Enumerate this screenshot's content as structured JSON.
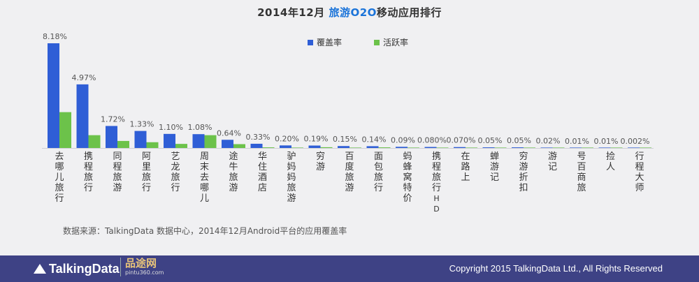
{
  "title": {
    "prefix": "2014年12月 ",
    "accent": "旅游O2O",
    "suffix": "移动应用排行"
  },
  "source_note": "数据来源：TalkingData 数据中心，2014年12月Android平台的应用覆盖率",
  "footer": {
    "logo": "TalkingData",
    "partner_name": "品途网",
    "partner_url": "pintu360.com",
    "copyright": "Copyright 2015 TalkingData Ltd., All Rights Reserved"
  },
  "colors": {
    "coverage": "#2f5ed6",
    "active": "#6cc24a",
    "footer": "#3e4285",
    "accent": "#1a73d9"
  },
  "chart_data": {
    "type": "bar",
    "categories": [
      "去哪儿旅行",
      "携程旅行",
      "同程旅游",
      "阿里旅行",
      "艺龙旅行",
      "周末去哪儿",
      "途牛旅游",
      "华住酒店",
      "驴妈妈旅游",
      "穷游",
      "百度旅游",
      "面包旅行",
      "蚂蜂窝特价",
      "携程旅行HD",
      "在路上",
      "蝉游记",
      "穷游折扣",
      "游记",
      "号百商旅",
      "捡人",
      "行程大师"
    ],
    "series": [
      {
        "name": "覆盖率",
        "values": [
          8.18,
          4.97,
          1.72,
          1.33,
          1.1,
          1.08,
          0.64,
          0.33,
          0.2,
          0.19,
          0.15,
          0.14,
          0.09,
          0.08,
          0.07,
          0.05,
          0.05,
          0.02,
          0.01,
          0.01,
          0.002
        ]
      },
      {
        "name": "活跃率",
        "values": [
          2.8,
          1.0,
          0.55,
          0.45,
          0.32,
          1.0,
          0.3,
          0.05,
          0.03,
          0.06,
          0.02,
          0.05,
          0.01,
          0.01,
          0.01,
          0.005,
          0.005,
          0.003,
          0.002,
          0.002,
          0.001
        ]
      }
    ],
    "data_labels": [
      "8.18%",
      "4.97%",
      "1.72%",
      "1.33%",
      "1.10%",
      "1.08%",
      "0.64%",
      "0.33%",
      "0.20%",
      "0.19%",
      "0.15%",
      "0.14%",
      "0.09%",
      "0.080%",
      "0.070%",
      "0.05%",
      "0.05%",
      "0.02%",
      "0.01%",
      "0.01%",
      "0.002%"
    ],
    "ylim": [
      0,
      8.18
    ],
    "grid": false,
    "legend_position": "top-center"
  }
}
